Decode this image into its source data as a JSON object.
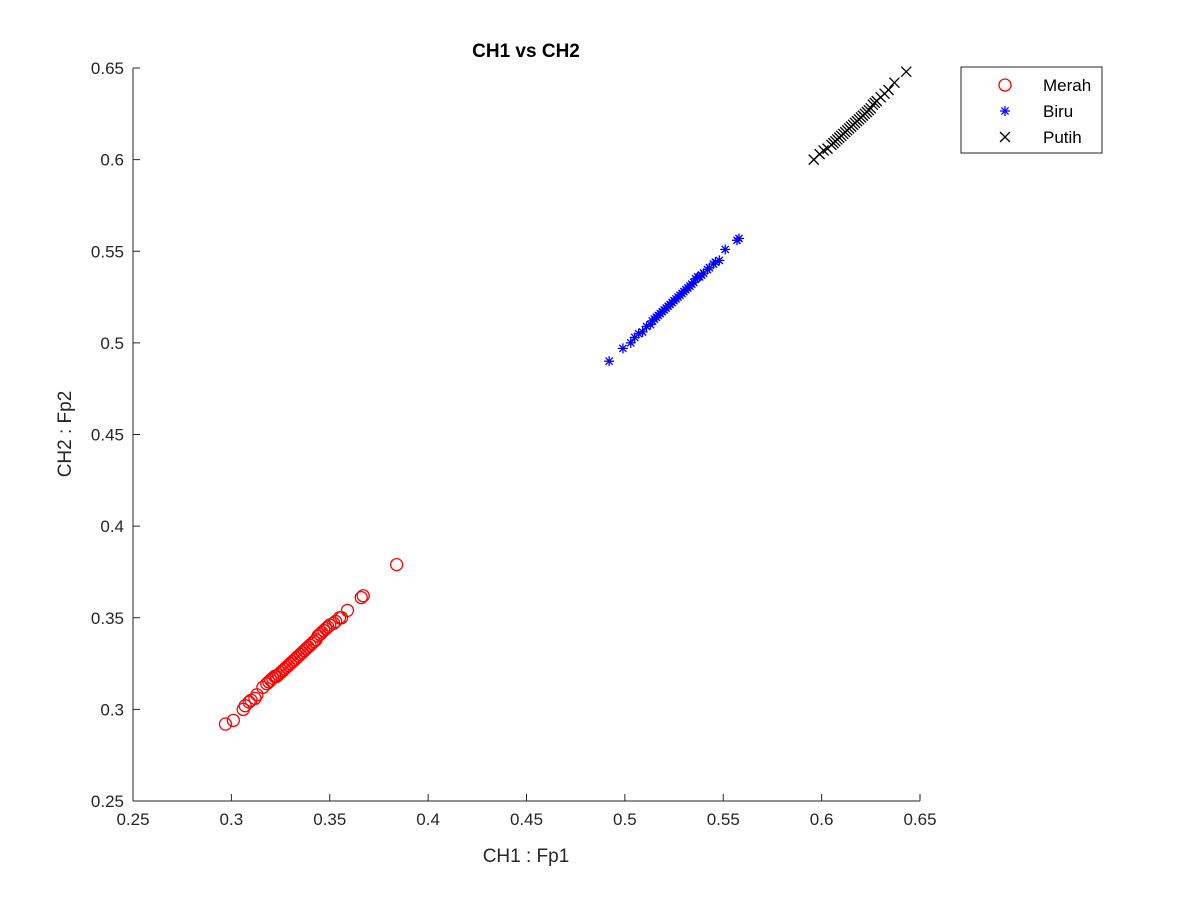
{
  "chart_data": {
    "type": "scatter",
    "title": "CH1 vs CH2",
    "xlabel": "CH1 : Fp1",
    "ylabel": "CH2 : Fp2",
    "xlim": [
      0.25,
      0.65
    ],
    "ylim": [
      0.25,
      0.65
    ],
    "xticks": [
      0.25,
      0.3,
      0.35,
      0.4,
      0.45,
      0.5,
      0.55,
      0.6,
      0.65
    ],
    "yticks": [
      0.25,
      0.3,
      0.35,
      0.4,
      0.45,
      0.5,
      0.55,
      0.6,
      0.65
    ],
    "xtick_labels": [
      "0.25",
      "0.3",
      "0.35",
      "0.4",
      "0.45",
      "0.5",
      "0.55",
      "0.6",
      "0.65"
    ],
    "ytick_labels": [
      "0.25",
      "0.3",
      "0.35",
      "0.4",
      "0.45",
      "0.5",
      "0.55",
      "0.6",
      "0.65"
    ],
    "grid": false,
    "legend_position": "outside-top-right",
    "series": [
      {
        "name": "Merah",
        "marker": "circle",
        "color": "#ff0000",
        "points": [
          [
            0.297,
            0.292
          ],
          [
            0.301,
            0.294
          ],
          [
            0.306,
            0.3
          ],
          [
            0.307,
            0.302
          ],
          [
            0.309,
            0.304
          ],
          [
            0.31,
            0.305
          ],
          [
            0.312,
            0.306
          ],
          [
            0.313,
            0.308
          ],
          [
            0.316,
            0.312
          ],
          [
            0.318,
            0.314
          ],
          [
            0.319,
            0.315
          ],
          [
            0.32,
            0.316
          ],
          [
            0.321,
            0.317
          ],
          [
            0.322,
            0.318
          ],
          [
            0.323,
            0.318
          ],
          [
            0.324,
            0.319
          ],
          [
            0.325,
            0.32
          ],
          [
            0.326,
            0.321
          ],
          [
            0.327,
            0.322
          ],
          [
            0.328,
            0.323
          ],
          [
            0.329,
            0.324
          ],
          [
            0.33,
            0.325
          ],
          [
            0.331,
            0.326
          ],
          [
            0.332,
            0.327
          ],
          [
            0.333,
            0.328
          ],
          [
            0.334,
            0.329
          ],
          [
            0.335,
            0.33
          ],
          [
            0.336,
            0.331
          ],
          [
            0.337,
            0.332
          ],
          [
            0.338,
            0.333
          ],
          [
            0.339,
            0.334
          ],
          [
            0.34,
            0.335
          ],
          [
            0.341,
            0.336
          ],
          [
            0.342,
            0.337
          ],
          [
            0.343,
            0.338
          ],
          [
            0.344,
            0.34
          ],
          [
            0.345,
            0.341
          ],
          [
            0.346,
            0.342
          ],
          [
            0.347,
            0.343
          ],
          [
            0.348,
            0.344
          ],
          [
            0.349,
            0.345
          ],
          [
            0.35,
            0.346
          ],
          [
            0.352,
            0.347
          ],
          [
            0.353,
            0.348
          ],
          [
            0.355,
            0.35
          ],
          [
            0.356,
            0.35
          ],
          [
            0.359,
            0.354
          ],
          [
            0.366,
            0.361
          ],
          [
            0.367,
            0.362
          ],
          [
            0.384,
            0.379
          ]
        ]
      },
      {
        "name": "Biru",
        "marker": "asterisk",
        "color": "#0000ff",
        "points": [
          [
            0.492,
            0.49
          ],
          [
            0.499,
            0.497
          ],
          [
            0.503,
            0.5
          ],
          [
            0.505,
            0.503
          ],
          [
            0.507,
            0.505
          ],
          [
            0.509,
            0.506
          ],
          [
            0.511,
            0.509
          ],
          [
            0.513,
            0.51
          ],
          [
            0.514,
            0.512
          ],
          [
            0.515,
            0.513
          ],
          [
            0.516,
            0.514
          ],
          [
            0.517,
            0.515
          ],
          [
            0.518,
            0.516
          ],
          [
            0.519,
            0.517
          ],
          [
            0.52,
            0.518
          ],
          [
            0.521,
            0.519
          ],
          [
            0.522,
            0.52
          ],
          [
            0.523,
            0.521
          ],
          [
            0.524,
            0.522
          ],
          [
            0.525,
            0.523
          ],
          [
            0.526,
            0.524
          ],
          [
            0.527,
            0.525
          ],
          [
            0.528,
            0.526
          ],
          [
            0.529,
            0.527
          ],
          [
            0.53,
            0.528
          ],
          [
            0.531,
            0.529
          ],
          [
            0.532,
            0.53
          ],
          [
            0.533,
            0.531
          ],
          [
            0.534,
            0.532
          ],
          [
            0.535,
            0.533
          ],
          [
            0.536,
            0.535
          ],
          [
            0.537,
            0.536
          ],
          [
            0.538,
            0.536
          ],
          [
            0.539,
            0.537
          ],
          [
            0.54,
            0.538
          ],
          [
            0.542,
            0.54
          ],
          [
            0.543,
            0.541
          ],
          [
            0.545,
            0.543
          ],
          [
            0.546,
            0.544
          ],
          [
            0.548,
            0.545
          ],
          [
            0.551,
            0.551
          ],
          [
            0.557,
            0.556
          ],
          [
            0.558,
            0.557
          ]
        ]
      },
      {
        "name": "Putih",
        "marker": "x",
        "color": "#000000",
        "points": [
          [
            0.596,
            0.6
          ],
          [
            0.599,
            0.603
          ],
          [
            0.601,
            0.605
          ],
          [
            0.603,
            0.606
          ],
          [
            0.605,
            0.608
          ],
          [
            0.606,
            0.609
          ],
          [
            0.607,
            0.61
          ],
          [
            0.608,
            0.611
          ],
          [
            0.609,
            0.612
          ],
          [
            0.61,
            0.613
          ],
          [
            0.611,
            0.614
          ],
          [
            0.612,
            0.615
          ],
          [
            0.613,
            0.616
          ],
          [
            0.614,
            0.617
          ],
          [
            0.615,
            0.618
          ],
          [
            0.616,
            0.619
          ],
          [
            0.617,
            0.62
          ],
          [
            0.618,
            0.621
          ],
          [
            0.619,
            0.622
          ],
          [
            0.62,
            0.623
          ],
          [
            0.621,
            0.624
          ],
          [
            0.622,
            0.625
          ],
          [
            0.623,
            0.626
          ],
          [
            0.624,
            0.627
          ],
          [
            0.625,
            0.628
          ],
          [
            0.626,
            0.63
          ],
          [
            0.627,
            0.631
          ],
          [
            0.628,
            0.632
          ],
          [
            0.63,
            0.634
          ],
          [
            0.632,
            0.636
          ],
          [
            0.634,
            0.638
          ],
          [
            0.637,
            0.642
          ],
          [
            0.643,
            0.648
          ]
        ]
      }
    ]
  }
}
